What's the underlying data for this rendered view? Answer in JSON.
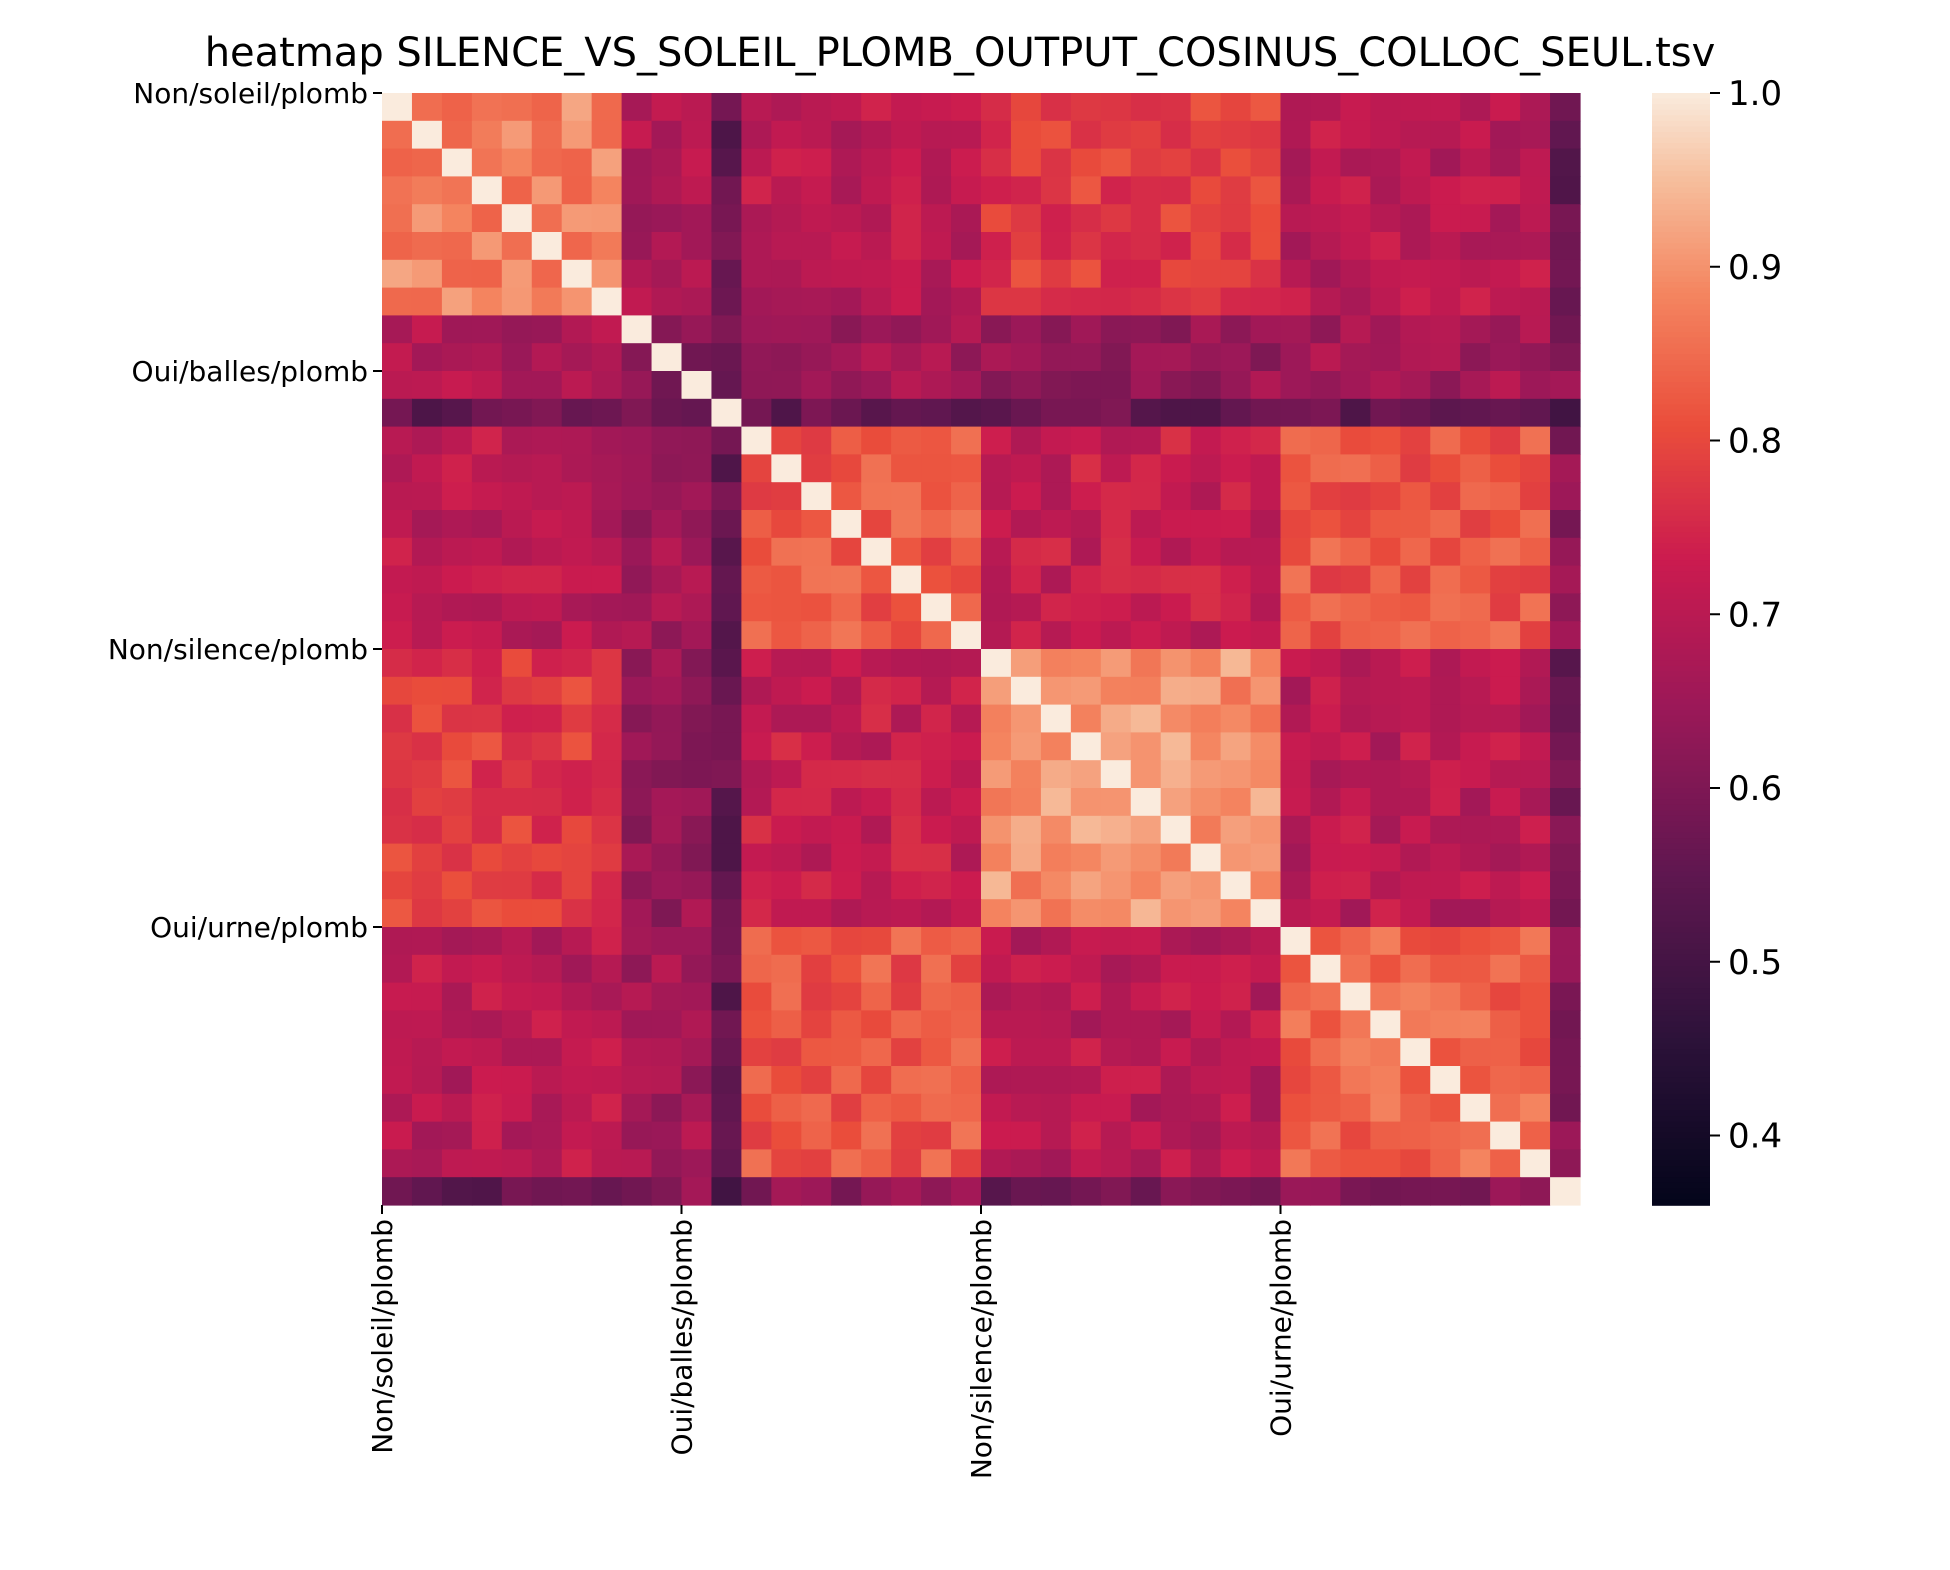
{
  "chart_data": {
    "type": "heatmap",
    "title": "heatmap SILENCE_VS_SOLEIL_PLOMB_OUTPUT_COSINUS_COLLOC_SEUL.tsv",
    "xlabel": "",
    "ylabel": "",
    "n": 40,
    "tick_labels": [
      {
        "label": "Non/soleil/plomb",
        "index": 0
      },
      {
        "label": "Oui/balles/plomb",
        "index": 10
      },
      {
        "label": "Non/silence/plomb",
        "index": 20
      },
      {
        "label": "Oui/urne/plomb",
        "index": 30
      }
    ],
    "groups": [
      [
        0,
        8
      ],
      [
        8,
        12
      ],
      [
        12,
        20
      ],
      [
        20,
        30
      ],
      [
        30,
        39
      ],
      [
        39,
        40
      ]
    ],
    "block_means": [
      [
        0.88,
        0.68,
        0.7,
        0.78,
        0.7,
        0.55
      ],
      [
        0.68,
        0.62,
        0.66,
        0.64,
        0.66,
        0.62
      ],
      [
        0.7,
        0.66,
        0.82,
        0.72,
        0.82,
        0.7
      ],
      [
        0.78,
        0.64,
        0.72,
        0.9,
        0.7,
        0.58
      ],
      [
        0.7,
        0.66,
        0.82,
        0.7,
        0.84,
        0.68
      ],
      [
        0.55,
        0.62,
        0.7,
        0.58,
        0.68,
        1.0
      ]
    ],
    "special_rows": [
      {
        "index": 11,
        "value": 0.5,
        "note": "dark row/column"
      },
      {
        "index": 39,
        "value": 0.56
      }
    ],
    "diagonal": 1.0,
    "colorbar": {
      "min": 0.36,
      "max": 1.0,
      "ticks": [
        "0.4",
        "0.5",
        "0.6",
        "0.7",
        "0.8",
        "0.9",
        "1.0"
      ],
      "tick_values": [
        0.4,
        0.5,
        0.6,
        0.7,
        0.8,
        0.9,
        1.0
      ],
      "colormap": "rocket"
    },
    "grid": false
  }
}
